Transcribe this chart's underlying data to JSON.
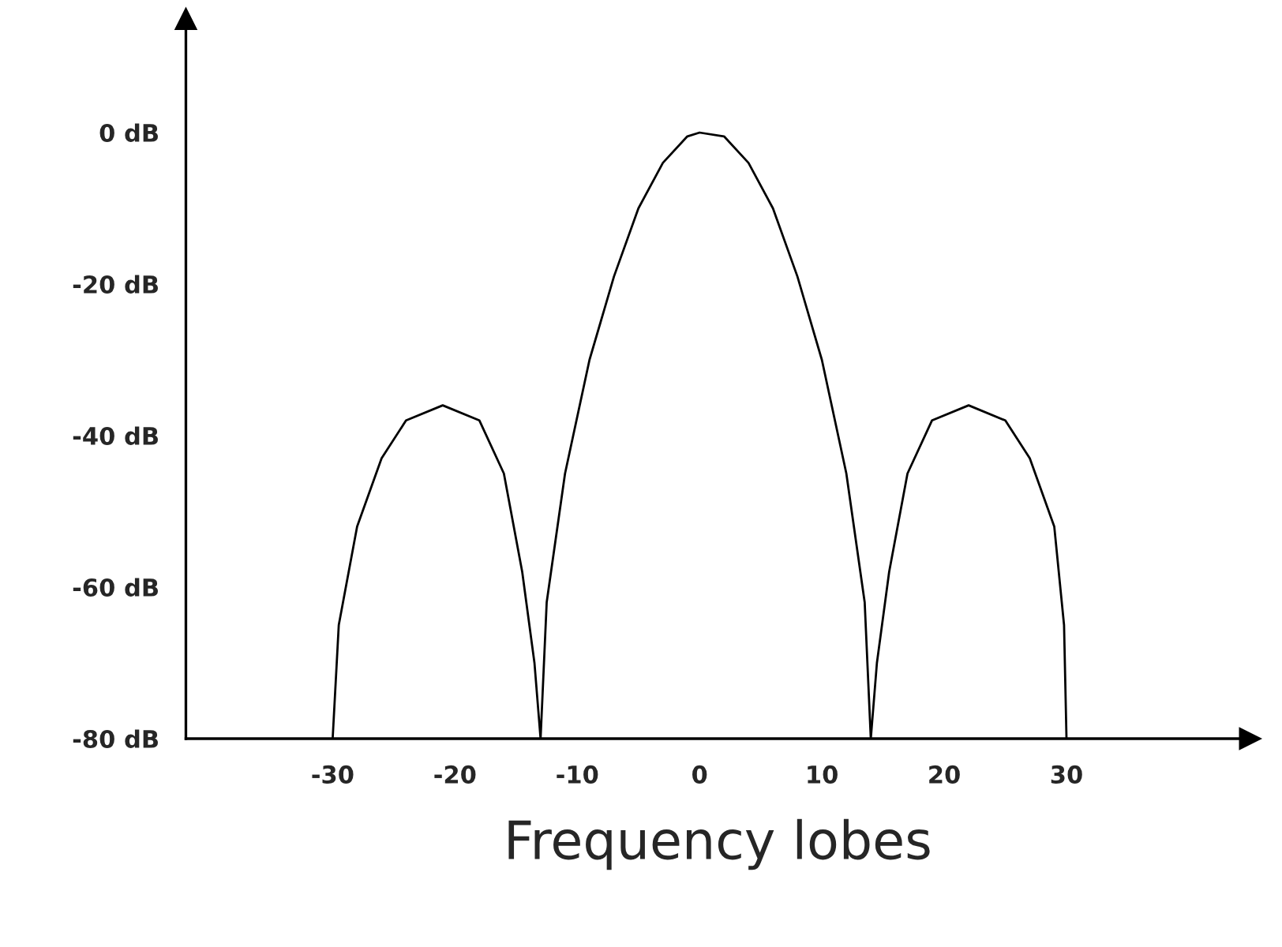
{
  "chart_data": {
    "type": "line",
    "xlabel": "Frequency lobes",
    "color": "#000000",
    "x": [
      -30,
      -29.5,
      -28,
      -26,
      -24,
      -21,
      -18,
      -16,
      -14.5,
      -13.5,
      -13,
      -12.5,
      -11,
      -9,
      -7,
      -5,
      -3,
      -1,
      0,
      2,
      4,
      6,
      8,
      10,
      12,
      13.5,
      14,
      14.5,
      15.5,
      17,
      19,
      22,
      25,
      27,
      29,
      29.8,
      30
    ],
    "values": [
      -80,
      -65,
      -52,
      -43,
      -38,
      -36,
      -38,
      -45,
      -58,
      -70,
      -80,
      -62,
      -45,
      -30,
      -19,
      -10,
      -4,
      -0.5,
      0,
      -0.5,
      -4,
      -10,
      -19,
      -30,
      -45,
      -62,
      -80,
      -70,
      -58,
      -45,
      -38,
      -36,
      -38,
      -43,
      -52,
      -65,
      -80
    ],
    "xlim": [
      -42,
      45
    ],
    "ylim": [
      -80,
      15
    ],
    "xticks": [
      -30,
      -20,
      -10,
      0,
      10,
      20,
      30
    ],
    "yticks": [
      {
        "value": 0,
        "label": "0 dB"
      },
      {
        "value": -20,
        "label": "-20 dB"
      },
      {
        "value": -40,
        "label": "-40 dB"
      },
      {
        "value": -60,
        "label": "-60 dB"
      },
      {
        "value": -80,
        "label": "-80 dB"
      }
    ],
    "grid": false,
    "marker": "none",
    "line_style": "solid"
  }
}
